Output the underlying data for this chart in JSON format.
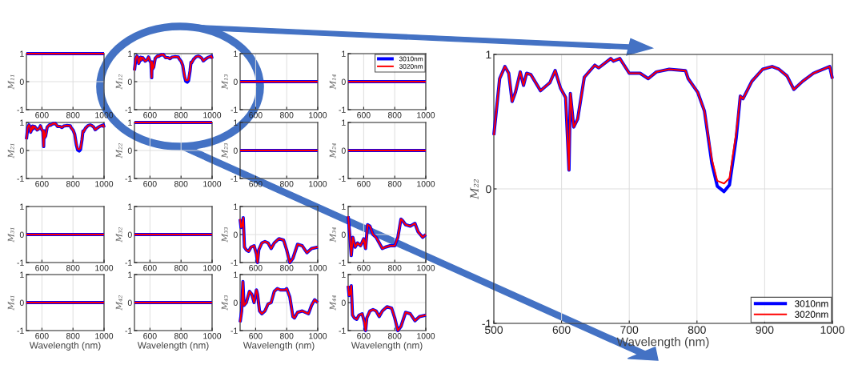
{
  "chart_data": [
    {
      "type": "line",
      "ylabel": "M₁₁",
      "xlim": [
        500,
        1000
      ],
      "xticks": [
        600,
        800,
        1000
      ],
      "ylim": [
        -1,
        1
      ],
      "yticks": [
        -1,
        0,
        1
      ],
      "grid": true,
      "x": [
        500,
        750,
        1000
      ],
      "series": [
        {
          "color": "#0000ff",
          "values": [
            1,
            1,
            1
          ]
        },
        {
          "color": "#ff0000",
          "values": [
            1,
            1,
            1
          ]
        }
      ]
    },
    {
      "type": "line",
      "ylabel": "M₁₂",
      "xlim": [
        500,
        1000
      ],
      "xticks": [
        600,
        800,
        1000
      ],
      "ylim": [
        -1,
        1
      ],
      "yticks": [
        -1,
        0,
        1
      ],
      "grid": true,
      "x": [
        500,
        508.6,
        516.4,
        522,
        527,
        532,
        539,
        543.8,
        548.4,
        554.7,
        569,
        582.8,
        590.6,
        598.4,
        606,
        611,
        613,
        618,
        623.8,
        633.6,
        649,
        655,
        672.7,
        676.6,
        686,
        700,
        716,
        728,
        740,
        759,
        783,
        787,
        801,
        811,
        822,
        830,
        840,
        848,
        858,
        864,
        868,
        881,
        897,
        911,
        921,
        933,
        943,
        956,
        972,
        996,
        1000
      ],
      "series": [
        {
          "color": "#0000ff",
          "values": [
            0.4,
            0.82,
            0.91,
            0.86,
            0.65,
            0.72,
            0.87,
            0.77,
            0.86,
            0.85,
            0.73,
            0.79,
            0.88,
            0.75,
            0.68,
            0.14,
            0.71,
            0.46,
            0.52,
            0.83,
            0.92,
            0.9,
            0.97,
            0.95,
            0.97,
            0.86,
            0.86,
            0.82,
            0.87,
            0.89,
            0.88,
            0.82,
            0.72,
            0.58,
            0.19,
            0.02,
            -0.02,
            0.03,
            0.38,
            0.69,
            0.67,
            0.8,
            0.89,
            0.91,
            0.89,
            0.84,
            0.74,
            0.8,
            0.86,
            0.91,
            0.82
          ]
        },
        {
          "color": "#ff0000",
          "values": [
            0.4,
            0.82,
            0.91,
            0.86,
            0.65,
            0.72,
            0.87,
            0.77,
            0.86,
            0.85,
            0.73,
            0.79,
            0.88,
            0.75,
            0.68,
            0.14,
            0.71,
            0.46,
            0.52,
            0.83,
            0.92,
            0.9,
            0.97,
            0.95,
            0.97,
            0.86,
            0.86,
            0.82,
            0.87,
            0.89,
            0.88,
            0.82,
            0.72,
            0.58,
            0.22,
            0.06,
            0.04,
            0.08,
            0.42,
            0.69,
            0.67,
            0.8,
            0.89,
            0.91,
            0.89,
            0.84,
            0.74,
            0.8,
            0.86,
            0.91,
            0.82
          ]
        }
      ]
    },
    {
      "type": "line",
      "ylabel": "M₁₃",
      "xlim": [
        500,
        1000
      ],
      "xticks": [
        600,
        800,
        1000
      ],
      "ylim": [
        -1,
        1
      ],
      "yticks": [
        -1,
        0,
        1
      ],
      "grid": true,
      "x": [
        500,
        750,
        1000
      ],
      "series": [
        {
          "color": "#0000ff",
          "values": [
            0,
            0,
            0
          ]
        },
        {
          "color": "#ff0000",
          "values": [
            0,
            0,
            0
          ]
        }
      ]
    },
    {
      "type": "line",
      "ylabel": "M₁₄",
      "xlim": [
        500,
        1000
      ],
      "xticks": [
        600,
        800,
        1000
      ],
      "ylim": [
        -1,
        1
      ],
      "yticks": [
        -1,
        0,
        1
      ],
      "grid": true,
      "legend": "top right",
      "x": [
        500,
        1000
      ],
      "series": [
        {
          "name": "3010nm",
          "color": "#0000ff",
          "values": [
            0,
            0
          ]
        },
        {
          "name": "3020nm",
          "color": "#ff0000",
          "values": [
            0,
            0
          ]
        }
      ]
    },
    {
      "type": "line",
      "ylabel": "M₂₂",
      "xlabel": "Wavelength (nm)",
      "xlim": [
        500,
        1000
      ],
      "xticks": [
        500,
        600,
        700,
        800,
        900,
        1000
      ],
      "ylim": [
        -1,
        1
      ],
      "yticks": [
        -1,
        0,
        1
      ],
      "grid": true,
      "legend": "bottom right",
      "x": [
        500,
        508.6,
        516.4,
        522,
        527,
        532,
        539,
        543.8,
        548.4,
        554.7,
        569,
        582.8,
        590.6,
        598.4,
        606,
        611,
        613,
        618,
        623.8,
        633.6,
        649,
        655,
        672.7,
        676.6,
        686,
        700,
        716,
        728,
        740,
        759,
        783,
        787,
        801,
        811,
        822,
        830,
        840,
        848,
        858,
        864,
        868,
        881,
        897,
        911,
        921,
        933,
        943,
        956,
        972,
        996,
        1000
      ],
      "series": [
        {
          "name": "3010nm",
          "color": "#0000ff",
          "values": [
            0.4,
            0.82,
            0.91,
            0.86,
            0.65,
            0.72,
            0.87,
            0.77,
            0.86,
            0.85,
            0.73,
            0.79,
            0.88,
            0.75,
            0.68,
            0.14,
            0.71,
            0.46,
            0.52,
            0.83,
            0.92,
            0.9,
            0.97,
            0.95,
            0.97,
            0.86,
            0.86,
            0.82,
            0.87,
            0.89,
            0.88,
            0.82,
            0.72,
            0.58,
            0.19,
            0.02,
            -0.02,
            0.03,
            0.38,
            0.69,
            0.67,
            0.8,
            0.89,
            0.91,
            0.89,
            0.84,
            0.74,
            0.8,
            0.86,
            0.91,
            0.82
          ]
        },
        {
          "name": "3020nm",
          "color": "#ff0000",
          "values": [
            0.4,
            0.82,
            0.91,
            0.86,
            0.65,
            0.72,
            0.87,
            0.77,
            0.86,
            0.85,
            0.73,
            0.79,
            0.88,
            0.75,
            0.68,
            0.14,
            0.71,
            0.46,
            0.52,
            0.83,
            0.92,
            0.9,
            0.97,
            0.95,
            0.97,
            0.86,
            0.86,
            0.82,
            0.87,
            0.89,
            0.88,
            0.82,
            0.72,
            0.58,
            0.22,
            0.06,
            0.04,
            0.08,
            0.42,
            0.69,
            0.67,
            0.8,
            0.89,
            0.91,
            0.89,
            0.84,
            0.74,
            0.8,
            0.86,
            0.91,
            0.82
          ]
        }
      ]
    },
    {
      "type": "line",
      "ylabel": "M₂₁",
      "xlim": [
        500,
        1000
      ],
      "xticks": [
        600,
        800,
        1000
      ],
      "ylim": [
        -1,
        1
      ],
      "yticks": [
        -1,
        0,
        1
      ],
      "grid": true,
      "x": [
        500,
        508.6,
        516.4,
        522,
        527,
        532,
        539,
        543.8,
        548.4,
        554.7,
        569,
        582.8,
        590.6,
        598.4,
        606,
        611,
        613,
        618,
        623.8,
        633.6,
        649,
        655,
        672.7,
        676.6,
        686,
        700,
        716,
        728,
        740,
        759,
        783,
        787,
        801,
        811,
        822,
        830,
        840,
        848,
        858,
        864,
        868,
        881,
        897,
        911,
        921,
        933,
        943,
        956,
        972,
        996,
        1000
      ],
      "series": [
        {
          "color": "#0000ff",
          "values": [
            0.4,
            0.82,
            0.91,
            0.86,
            0.65,
            0.72,
            0.87,
            0.77,
            0.86,
            0.85,
            0.73,
            0.79,
            0.88,
            0.75,
            0.68,
            0.14,
            0.71,
            0.46,
            0.52,
            0.83,
            0.92,
            0.9,
            0.97,
            0.95,
            0.97,
            0.86,
            0.86,
            0.82,
            0.87,
            0.89,
            0.88,
            0.82,
            0.72,
            0.58,
            0.19,
            0.02,
            -0.02,
            0.03,
            0.38,
            0.69,
            0.67,
            0.8,
            0.89,
            0.91,
            0.89,
            0.84,
            0.74,
            0.8,
            0.86,
            0.91,
            0.82
          ]
        },
        {
          "color": "#ff0000",
          "values": [
            0.4,
            0.82,
            0.91,
            0.86,
            0.65,
            0.72,
            0.87,
            0.77,
            0.86,
            0.85,
            0.73,
            0.79,
            0.88,
            0.75,
            0.68,
            0.14,
            0.71,
            0.46,
            0.52,
            0.83,
            0.92,
            0.9,
            0.97,
            0.95,
            0.97,
            0.86,
            0.86,
            0.82,
            0.87,
            0.89,
            0.88,
            0.82,
            0.72,
            0.58,
            0.22,
            0.06,
            0.04,
            0.08,
            0.42,
            0.69,
            0.67,
            0.8,
            0.89,
            0.91,
            0.89,
            0.84,
            0.74,
            0.8,
            0.86,
            0.91,
            0.82
          ]
        }
      ]
    },
    {
      "type": "line",
      "ylabel": "M₂₂",
      "xlim": [
        500,
        1000
      ],
      "xticks": [
        600,
        800,
        1000
      ],
      "ylim": [
        -1,
        1
      ],
      "yticks": [
        -1,
        0,
        1
      ],
      "grid": true,
      "x": [
        500,
        1000
      ],
      "series": [
        {
          "color": "#0000ff",
          "values": [
            1,
            1
          ]
        },
        {
          "color": "#ff0000",
          "values": [
            1,
            1
          ]
        }
      ]
    },
    {
      "type": "line",
      "ylabel": "M₂₃",
      "xlim": [
        500,
        1000
      ],
      "xticks": [
        600,
        800,
        1000
      ],
      "ylim": [
        -1,
        1
      ],
      "yticks": [
        -1,
        0,
        1
      ],
      "grid": true,
      "x": [
        500,
        1000
      ],
      "series": [
        {
          "color": "#0000ff",
          "values": [
            0,
            0
          ]
        },
        {
          "color": "#ff0000",
          "values": [
            0,
            0
          ]
        }
      ]
    },
    {
      "type": "line",
      "ylabel": "M₂₄",
      "xlim": [
        500,
        1000
      ],
      "xticks": [
        600,
        800,
        1000
      ],
      "ylim": [
        -1,
        1
      ],
      "yticks": [
        -1,
        0,
        1
      ],
      "grid": true,
      "x": [
        500,
        1000
      ],
      "series": [
        {
          "color": "#0000ff",
          "values": [
            0,
            0
          ]
        },
        {
          "color": "#ff0000",
          "values": [
            0,
            0
          ]
        }
      ]
    },
    {
      "type": "line",
      "ylabel": "M₃₁",
      "xlim": [
        500,
        1000
      ],
      "xticks": [
        600,
        800,
        1000
      ],
      "ylim": [
        -1,
        1
      ],
      "yticks": [
        -1,
        0,
        1
      ],
      "grid": true,
      "x": [
        500,
        1000
      ],
      "series": [
        {
          "color": "#0000ff",
          "values": [
            0,
            0
          ]
        },
        {
          "color": "#ff0000",
          "values": [
            0,
            0
          ]
        }
      ]
    },
    {
      "type": "line",
      "ylabel": "M₃₂",
      "xlim": [
        500,
        1000
      ],
      "xticks": [
        600,
        800,
        1000
      ],
      "ylim": [
        -1,
        1
      ],
      "yticks": [
        -1,
        0,
        1
      ],
      "grid": true,
      "x": [
        500,
        1000
      ],
      "series": [
        {
          "color": "#0000ff",
          "values": [
            0,
            0
          ]
        },
        {
          "color": "#ff0000",
          "values": [
            0,
            0
          ]
        }
      ]
    },
    {
      "type": "line",
      "ylabel": "M₃₃",
      "xlim": [
        500,
        1000
      ],
      "xticks": [
        600,
        800,
        1000
      ],
      "ylim": [
        -1,
        1
      ],
      "yticks": [
        -1,
        0,
        1
      ],
      "grid": true,
      "x": [
        500,
        506,
        512,
        520,
        528,
        540,
        555,
        570,
        590,
        605,
        612,
        620,
        640,
        660,
        680,
        700,
        720,
        750,
        780,
        800,
        820,
        840,
        870,
        900,
        930,
        960,
        1000
      ],
      "series": [
        {
          "color": "#0000ff",
          "values": [
            0.55,
            0.25,
            0.3,
            0.6,
            -0.45,
            -0.55,
            -0.6,
            -0.45,
            -0.4,
            -0.7,
            -1.0,
            -0.55,
            -0.3,
            -0.25,
            -0.3,
            -0.5,
            -0.3,
            -0.15,
            -0.2,
            -0.55,
            -1.0,
            -0.85,
            -0.35,
            -0.4,
            -0.65,
            -0.5,
            -0.45
          ]
        },
        {
          "color": "#ff0000",
          "values": [
            0.55,
            0.25,
            0.3,
            0.6,
            -0.45,
            -0.55,
            -0.6,
            -0.45,
            -0.4,
            -0.7,
            -1.0,
            -0.55,
            -0.3,
            -0.25,
            -0.3,
            -0.5,
            -0.3,
            -0.15,
            -0.2,
            -0.55,
            -1.0,
            -0.85,
            -0.35,
            -0.4,
            -0.65,
            -0.5,
            -0.45
          ]
        }
      ]
    },
    {
      "type": "line",
      "ylabel": "M₃₄",
      "xlim": [
        500,
        1000
      ],
      "xticks": [
        600,
        800,
        1000
      ],
      "ylim": [
        -1,
        1
      ],
      "yticks": [
        -1,
        0,
        1
      ],
      "grid": true,
      "x": [
        500,
        510,
        520,
        530,
        545,
        560,
        580,
        600,
        612,
        625,
        640,
        660,
        680,
        700,
        720,
        740,
        770,
        800,
        820,
        840,
        850,
        870,
        900,
        930,
        950,
        980,
        1000
      ],
      "series": [
        {
          "color": "#0000ff",
          "values": [
            0.65,
            0.0,
            -0.75,
            -0.1,
            -0.45,
            -0.3,
            -0.4,
            -0.15,
            -0.5,
            0.35,
            0.3,
            0.0,
            -0.1,
            -0.3,
            -0.5,
            -0.45,
            -0.4,
            -0.4,
            -0.1,
            0.55,
            0.5,
            0.35,
            0.3,
            0.4,
            0.1,
            -0.1,
            0.0
          ]
        },
        {
          "color": "#ff0000",
          "values": [
            0.65,
            0.0,
            -0.75,
            -0.1,
            -0.45,
            -0.3,
            -0.4,
            -0.15,
            -0.5,
            0.35,
            0.3,
            0.0,
            -0.1,
            -0.3,
            -0.5,
            -0.45,
            -0.4,
            -0.4,
            -0.1,
            0.55,
            0.5,
            0.35,
            0.3,
            0.4,
            0.1,
            -0.1,
            0.0
          ]
        }
      ]
    },
    {
      "type": "line",
      "ylabel": "M₄₁",
      "xlabel": "Wavelength (nm)",
      "xlim": [
        500,
        1000
      ],
      "xticks": [
        600,
        800,
        1000
      ],
      "ylim": [
        -1,
        1
      ],
      "yticks": [
        -1,
        0,
        1
      ],
      "grid": true,
      "x": [
        500,
        1000
      ],
      "series": [
        {
          "color": "#0000ff",
          "values": [
            0,
            0
          ]
        },
        {
          "color": "#ff0000",
          "values": [
            0,
            0
          ]
        }
      ]
    },
    {
      "type": "line",
      "ylabel": "M₄₂",
      "xlabel": "Wavelength (nm)",
      "xlim": [
        500,
        1000
      ],
      "xticks": [
        600,
        800,
        1000
      ],
      "ylim": [
        -1,
        1
      ],
      "yticks": [
        -1,
        0,
        1
      ],
      "grid": true,
      "x": [
        500,
        1000
      ],
      "series": [
        {
          "color": "#0000ff",
          "values": [
            0,
            0
          ]
        },
        {
          "color": "#ff0000",
          "values": [
            0,
            0
          ]
        }
      ]
    },
    {
      "type": "line",
      "ylabel": "M₄₃",
      "xlabel": "Wavelength (nm)",
      "xlim": [
        500,
        1000
      ],
      "xticks": [
        600,
        800,
        1000
      ],
      "ylim": [
        -1,
        1
      ],
      "yticks": [
        -1,
        0,
        1
      ],
      "grid": true,
      "x": [
        500,
        510,
        518,
        525,
        540,
        560,
        575,
        590,
        605,
        612,
        625,
        640,
        660,
        680,
        700,
        720,
        740,
        760,
        790,
        800,
        820,
        840,
        850,
        870,
        900,
        920,
        940,
        960,
        980,
        1000
      ],
      "series": [
        {
          "color": "#0000ff",
          "values": [
            -0.7,
            -0.3,
            0.75,
            -0.1,
            0.0,
            0.4,
            0.3,
            0.0,
            0.45,
            0.3,
            -0.3,
            -0.4,
            -0.3,
            -0.05,
            0.0,
            0.4,
            0.5,
            0.45,
            0.45,
            0.5,
            0.2,
            -0.5,
            -0.55,
            -0.35,
            -0.3,
            -0.35,
            -0.4,
            -0.1,
            0.1,
            0.0
          ]
        },
        {
          "color": "#ff0000",
          "values": [
            -0.7,
            -0.3,
            0.75,
            -0.1,
            0.0,
            0.4,
            0.3,
            0.0,
            0.45,
            0.3,
            -0.3,
            -0.4,
            -0.3,
            -0.05,
            0.0,
            0.4,
            0.5,
            0.45,
            0.45,
            0.5,
            0.2,
            -0.5,
            -0.55,
            -0.35,
            -0.3,
            -0.35,
            -0.4,
            -0.1,
            0.1,
            0.0
          ]
        }
      ]
    },
    {
      "type": "line",
      "ylabel": "M₄₄",
      "xlabel": "Wavelength (nm)",
      "xlim": [
        500,
        1000
      ],
      "xticks": [
        600,
        800,
        1000
      ],
      "ylim": [
        -1,
        1
      ],
      "yticks": [
        -1,
        0,
        1
      ],
      "grid": true,
      "x": [
        500,
        506,
        512,
        520,
        528,
        540,
        555,
        570,
        590,
        605,
        612,
        620,
        640,
        660,
        680,
        700,
        720,
        750,
        780,
        800,
        820,
        840,
        870,
        900,
        930,
        960,
        1000
      ],
      "series": [
        {
          "color": "#0000ff",
          "values": [
            0.6,
            0.25,
            0.3,
            0.6,
            -0.45,
            -0.55,
            -0.6,
            -0.45,
            -0.4,
            -0.7,
            -1.0,
            -0.55,
            -0.3,
            -0.25,
            -0.3,
            -0.5,
            -0.3,
            -0.15,
            -0.2,
            -0.55,
            -1.0,
            -0.85,
            -0.35,
            -0.4,
            -0.65,
            -0.5,
            -0.45
          ]
        },
        {
          "color": "#ff0000",
          "values": [
            0.6,
            0.25,
            0.3,
            0.6,
            -0.45,
            -0.55,
            -0.6,
            -0.45,
            -0.4,
            -0.7,
            -1.0,
            -0.55,
            -0.3,
            -0.25,
            -0.3,
            -0.5,
            -0.3,
            -0.15,
            -0.2,
            -0.55,
            -1.0,
            -0.85,
            -0.35,
            -0.4,
            -0.65,
            -0.5,
            -0.45
          ]
        }
      ]
    }
  ]
}
